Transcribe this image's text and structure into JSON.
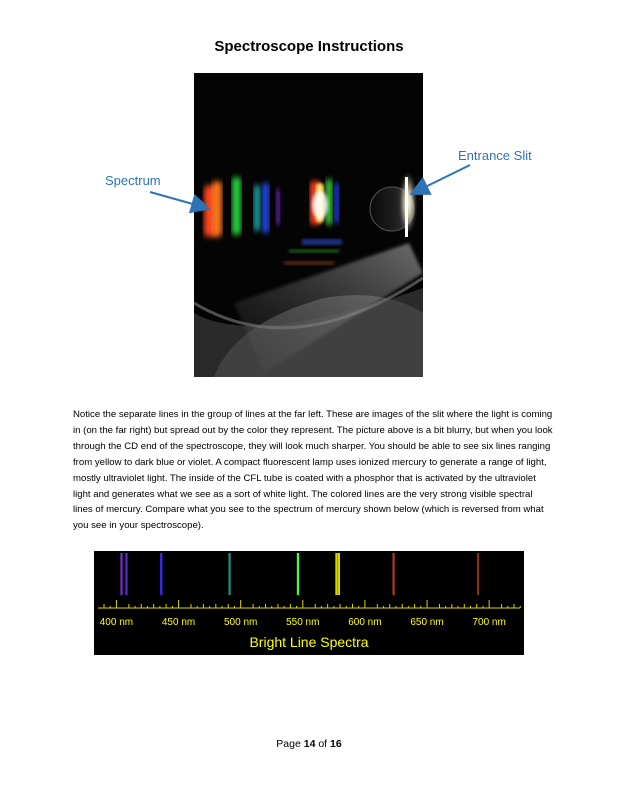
{
  "page_title": "Spectroscope Instructions",
  "callouts": {
    "spectrum": "Spectrum",
    "entrance_slit": "Entrance Slit"
  },
  "paragraph": "Notice the separate lines in the group of lines at the far left.  These are images of the slit where the light is coming in (on the far right) but spread out by the color they represent.  The picture above is a bit blurry, but when you look through the CD end of the spectroscope, they will look much sharper.  You should be able to see six lines ranging from yellow to dark blue or violet.  A compact fluorescent lamp uses ionized mercury to generate a range of light, mostly ultraviolet light.  The inside of the CFL tube is coated with a phosphor that is activated by the ultraviolet light and generates what we see as a sort of white light.  The colored lines are the very strong visible spectral lines of mercury.  Compare what you see to the spectrum of mercury shown below (which is reversed from what you see in your spectroscope).",
  "spectrum_chart": {
    "title": "Bright Line Spectra",
    "tick_labels": [
      "400 nm",
      "450 nm",
      "500 nm",
      "550 nm",
      "600 nm",
      "650 nm",
      "700 nm"
    ],
    "wavelength_range": [
      390,
      720
    ],
    "lines": [
      {
        "nm": 404,
        "color": "#7a2bd6"
      },
      {
        "nm": 408,
        "color": "#5a2ad0"
      },
      {
        "nm": 436,
        "color": "#3d2bff"
      },
      {
        "nm": 491,
        "color": "#1f8f8a"
      },
      {
        "nm": 546,
        "color": "#3dff3d"
      },
      {
        "nm": 577,
        "color": "#d8d800"
      },
      {
        "nm": 579,
        "color": "#d8d800"
      },
      {
        "nm": 623,
        "color": "#b03a20"
      },
      {
        "nm": 691,
        "color": "#8a2a1a"
      }
    ],
    "label_color": "#ffff00"
  },
  "footer": {
    "prefix": "Page ",
    "page": "14",
    "middle": " of ",
    "total": "16"
  }
}
